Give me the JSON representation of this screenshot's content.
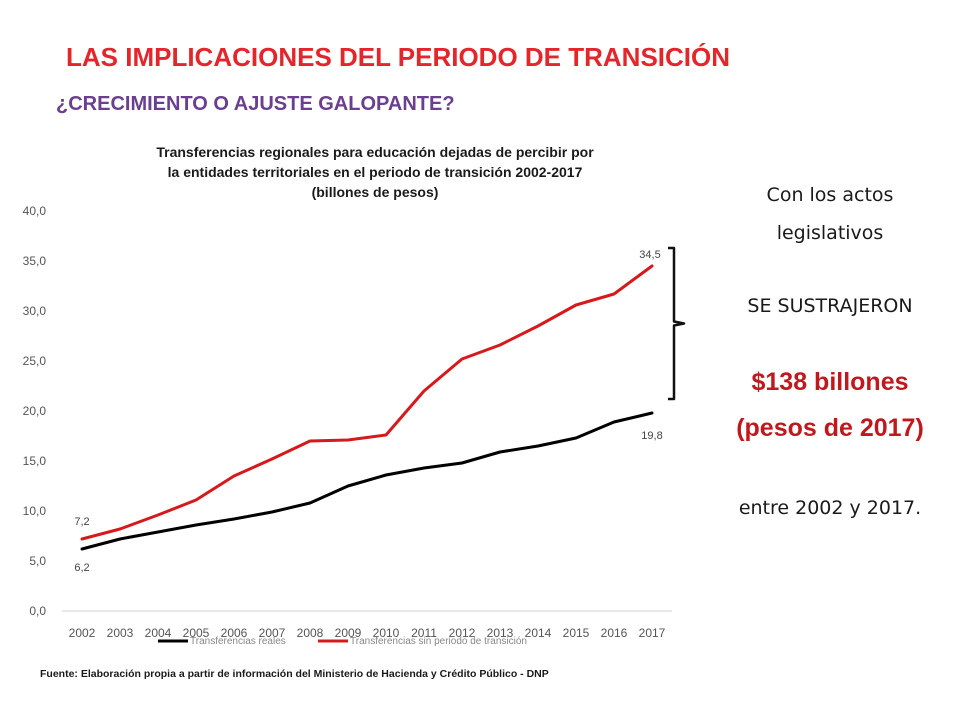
{
  "header": {
    "title": "LAS IMPLICACIONES DEL PERIODO DE TRANSICIÓN",
    "subtitle": "¿CRECIMIENTO O AJUSTE GALOPANTE?"
  },
  "side_text": {
    "line1": "Con los actos",
    "line2": "legislativos",
    "line3": "SE SUSTRAJERON",
    "amount": "$138 billones",
    "unit": "(pesos de 2017)",
    "period": "entre 2002 y 2017."
  },
  "source": "Fuente: Elaboración  propia  a partir de información  del  Ministerio de Hacienda  y Crédito Público  - DNP",
  "colors": {
    "title": "#e4262b",
    "subtitle": "#6a3f8f",
    "series_real": "#000000",
    "series_sin": "#d7191c",
    "amount": "#c0181c"
  },
  "chart_data": {
    "type": "line",
    "title_lines": [
      "Transferencias regionales para educación dejadas de percibir por",
      "la entidades territoriales en el periodo de transición 2002-2017",
      "(billones de pesos)"
    ],
    "x": [
      "2002",
      "2003",
      "2004",
      "2005",
      "2006",
      "2007",
      "2008",
      "2009",
      "2010",
      "2011",
      "2012",
      "2013",
      "2014",
      "2015",
      "2016",
      "2017"
    ],
    "ylim": [
      0,
      40
    ],
    "yticks": [
      "0,0",
      "5,0",
      "10,0",
      "15,0",
      "20,0",
      "25,0",
      "30,0",
      "35,0",
      "40,0"
    ],
    "grid": false,
    "legend_position": "bottom",
    "series": [
      {
        "name": "Transferencias reales",
        "color": "#000000",
        "values": [
          6.2,
          7.2,
          7.9,
          8.6,
          9.2,
          9.9,
          10.8,
          12.5,
          13.6,
          14.3,
          14.8,
          15.9,
          16.5,
          17.3,
          18.9,
          19.8
        ],
        "labels": {
          "first": "6,2",
          "last": "19,8"
        }
      },
      {
        "name": "Transferencias sin periodo de transición",
        "color": "#d7191c",
        "values": [
          7.2,
          8.2,
          9.6,
          11.1,
          13.5,
          15.2,
          17.0,
          17.1,
          17.6,
          22.0,
          25.2,
          26.6,
          28.5,
          30.6,
          31.7,
          34.5
        ],
        "labels": {
          "first": "7,2",
          "last": "34,5"
        }
      }
    ]
  }
}
